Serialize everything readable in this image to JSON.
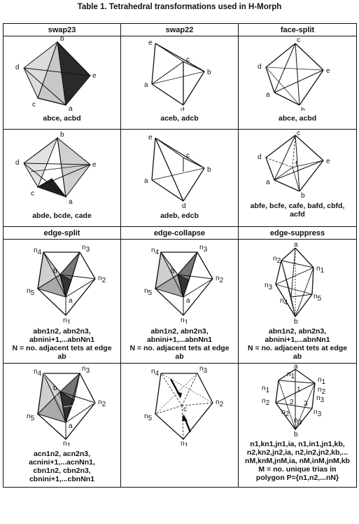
{
  "title": "Table 1. Tetrahedral transformations used in H-Morph",
  "headers_row1": [
    "swap23",
    "swap22",
    "face-split"
  ],
  "headers_row2": [
    "edge-split",
    "edge-collapse",
    "edge-suppress"
  ],
  "captions": {
    "swap23_top": "abce, acbd",
    "swap22_top": "aceb, adcb",
    "facesplit_top": "abce, acbd",
    "swap23_bottom": "abde, bcde, cade",
    "swap22_bottom": "adeb, edcb",
    "facesplit_bottom_1": "abfe, bcfe, cafe, bafd, cbfd,",
    "facesplit_bottom_2": "acfd",
    "edgesplit_1": "abn1n2, abn2n3,",
    "edgesplit_2": "abnini+1,...abnNn1",
    "edgesplit_3": "N = no. adjacent tets at edge",
    "edgesplit_4": "ab",
    "edgecollapse_1": "abn1n2, abn2n3,",
    "edgecollapse_2": "abnini+1,...abnNn1",
    "edgecollapse_3": "N = no. adjacent tets at edge",
    "edgecollapse_4": "ab",
    "edgesuppress_1": "abn1n2, abn2n3,",
    "edgesuppress_2": "abnini+1,...abnNn1",
    "edgesuppress_3": "N = no. adjacent tets at edge",
    "edgesuppress_4": "ab",
    "es_bottom_1": "acn1n2, acn2n3,",
    "es_bottom_2": "acnini+1,...acnNn1,",
    "es_bottom_3": "cbn1n2, cbn2n3,",
    "es_bottom_4": "cbnini+1,...cbnNn1",
    "sup_bottom_1": "n1,kn1,jn1,ia, n1,in1,jn1,kb,",
    "sup_bottom_2": "n2,kn2,jn2,ia, n2,in2,jn2,kb,...",
    "sup_bottom_3": "nM,knM,jnM,ia, nM,inM,jnM,kb",
    "sup_bottom_4": "M = no. unique trias in",
    "sup_bottom_5": "polygon P={n1,n2,...nN}"
  },
  "labels": {
    "a": "a",
    "b": "b",
    "c": "c",
    "d": "d",
    "e": "e",
    "f": "f",
    "n": "n",
    "one": "1",
    "two": "2",
    "three": "3",
    "four": "4",
    "five": "5"
  }
}
